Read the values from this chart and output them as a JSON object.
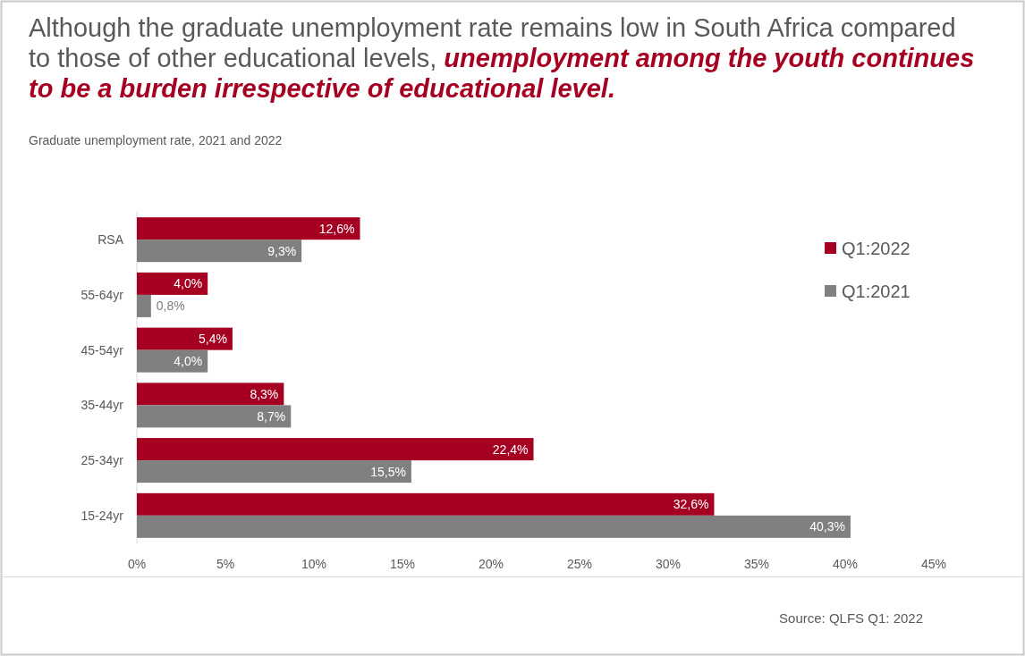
{
  "chart_data": {
    "type": "bar",
    "orientation": "horizontal",
    "title": "Although the graduate unemployment rate remains low in South Africa compared to those of other educational levels, unemployment among the youth continues to be a burden irrespective of educational level.",
    "subtitle": "Graduate unemployment rate, 2021 and 2022",
    "categories": [
      "RSA",
      "55-64yr",
      "45-54yr",
      "35-44yr",
      "25-34yr",
      "15-24yr"
    ],
    "series": [
      {
        "name": "Q1:2022",
        "color": "#a50021",
        "values": [
          12.6,
          4.0,
          5.4,
          8.3,
          22.4,
          32.6
        ],
        "value_labels": [
          "12,6%",
          "4,0%",
          "5,4%",
          "8,3%",
          "22,4%",
          "32,6%"
        ]
      },
      {
        "name": "Q1:2021",
        "color": "#808080",
        "values": [
          9.3,
          0.8,
          4.0,
          8.7,
          15.5,
          40.3
        ],
        "value_labels": [
          "9,3%",
          "0,8%",
          "4,0%",
          "8,7%",
          "15,5%",
          "40,3%"
        ]
      }
    ],
    "xlim": [
      0,
      45
    ],
    "xticks": [
      {
        "value": 0,
        "label": "0%"
      },
      {
        "value": 5,
        "label": "5%"
      },
      {
        "value": 10,
        "label": "10%"
      },
      {
        "value": 15,
        "label": "15%"
      },
      {
        "value": 20,
        "label": "20%"
      },
      {
        "value": 25,
        "label": "25%"
      },
      {
        "value": 30,
        "label": "30%"
      },
      {
        "value": 35,
        "label": "35%"
      },
      {
        "value": 40,
        "label": "40%"
      },
      {
        "value": 45,
        "label": "45%"
      }
    ],
    "legend": "top right",
    "annotations": [
      "Source: QLFS Q1: 2022"
    ]
  }
}
